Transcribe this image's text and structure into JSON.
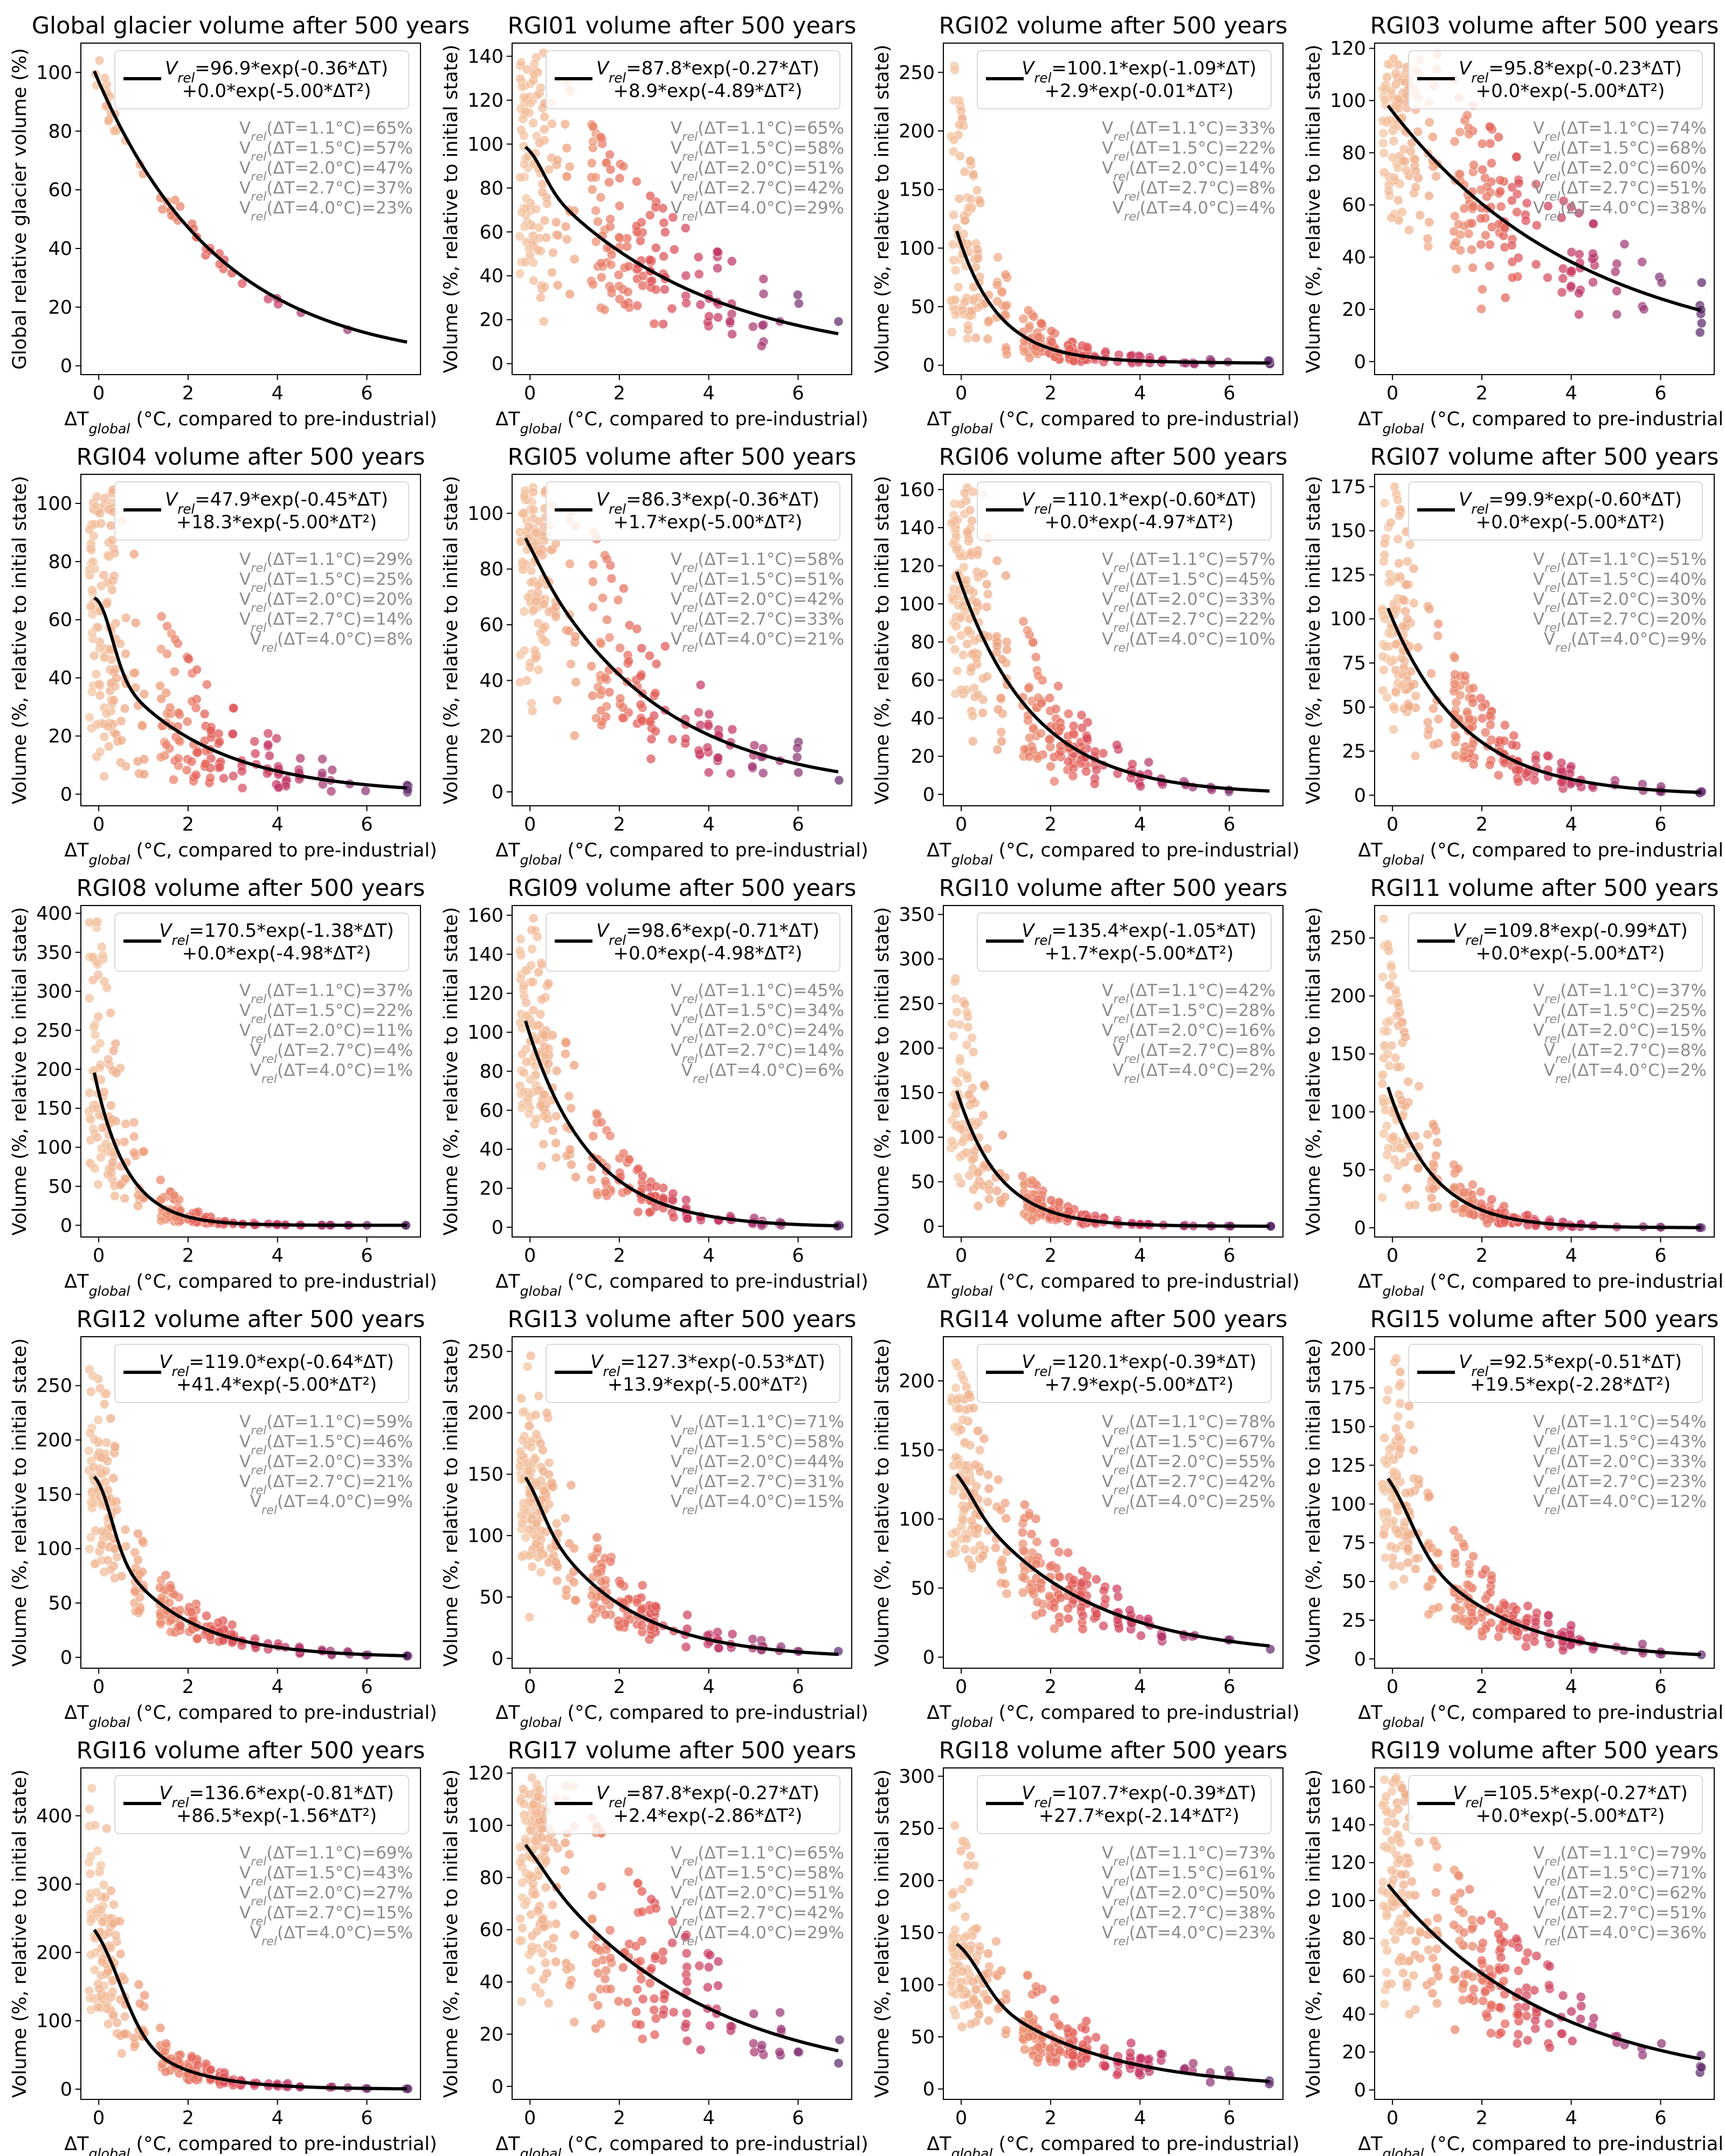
{
  "figure": {
    "xlabel": "ΔTglobal (°C, compared to pre-industrial)",
    "xticks": [
      0,
      2,
      4,
      6
    ],
    "xlim": [
      -0.4,
      7.2
    ],
    "colormap": [
      "#f3c7a4",
      "#ed9a76",
      "#e35b55",
      "#c73865",
      "#9b3a77",
      "#5c2a6b"
    ]
  },
  "chart_data": [
    {
      "type": "scatter",
      "title": "Global glacier volume after 500 years",
      "ylabel": "Global relative glacier volume (%)",
      "ylim": [
        -3,
        110
      ],
      "yticks": [
        0,
        20,
        40,
        60,
        80,
        100
      ],
      "fit": {
        "a": 96.9,
        "b": 0.36,
        "c": 0.0,
        "d": 5.0
      },
      "legend": [
        "Vrel=96.9*exp(-0.36*ΔT)",
        "+0.0*exp(-5.00*ΔT²)"
      ],
      "stats": [
        "Vrel(ΔT=1.1°C)=65%",
        "Vrel(ΔT=1.5°C)=57%",
        "Vrel(ΔT=2.0°C)=47%",
        "Vrel(ΔT=2.7°C)=37%",
        "Vrel(ΔT=4.0°C)=23%"
      ],
      "scatter": {
        "n": 48,
        "spread": 0.06,
        "low": 0.92,
        "high": 1.08
      }
    },
    {
      "type": "scatter",
      "title": "RGI01 volume after 500 years",
      "ylabel": "Volume (%, relative to initial state)",
      "ylim": [
        -5,
        146
      ],
      "yticks": [
        0,
        20,
        40,
        60,
        80,
        100,
        120,
        140
      ],
      "fit": {
        "a": 87.8,
        "b": 0.27,
        "c": 8.9,
        "d": 4.89
      },
      "legend": [
        "Vrel=87.8*exp(-0.27*ΔT)",
        "+8.9*exp(-4.89*ΔT²)"
      ],
      "stats": [
        "Vrel(ΔT=1.1°C)=65%",
        "Vrel(ΔT=1.5°C)=58%",
        "Vrel(ΔT=2.0°C)=51%",
        "Vrel(ΔT=2.7°C)=42%",
        "Vrel(ΔT=4.0°C)=29%"
      ],
      "scatter": {
        "n": 260,
        "spread": 0.45,
        "low": 0.1,
        "high": 1.8
      }
    },
    {
      "type": "scatter",
      "title": "RGI02 volume after 500 years",
      "ylabel": "Volume (%, relative to initial state)",
      "ylim": [
        -8,
        275
      ],
      "yticks": [
        0,
        50,
        100,
        150,
        200,
        250
      ],
      "fit": {
        "a": 100.1,
        "b": 1.09,
        "c": 2.9,
        "d": 0.01
      },
      "legend": [
        "Vrel=100.1*exp(-1.09*ΔT)",
        "+2.9*exp(-0.01*ΔT²)"
      ],
      "stats": [
        "Vrel(ΔT=1.1°C)=33%",
        "Vrel(ΔT=1.5°C)=22%",
        "Vrel(ΔT=2.0°C)=14%",
        "Vrel(ΔT=2.7°C)=8%",
        "Vrel(ΔT=4.0°C)=4%"
      ],
      "scatter": {
        "n": 240,
        "spread": 0.6,
        "low": 0.0,
        "high": 2.1
      }
    },
    {
      "type": "scatter",
      "title": "RGI03 volume after 500 years",
      "ylabel": "Volume (%, relative to initial state)",
      "ylim": [
        -5,
        122
      ],
      "yticks": [
        0,
        20,
        40,
        60,
        80,
        100,
        120
      ],
      "fit": {
        "a": 95.8,
        "b": 0.23,
        "c": 0.0,
        "d": 5.0
      },
      "legend": [
        "Vrel=95.8*exp(-0.23*ΔT)",
        "+0.0*exp(-5.00*ΔT²)"
      ],
      "stats": [
        "Vrel(ΔT=1.1°C)=74%",
        "Vrel(ΔT=1.5°C)=68%",
        "Vrel(ΔT=2.0°C)=60%",
        "Vrel(ΔT=2.7°C)=51%",
        "Vrel(ΔT=4.0°C)=38%"
      ],
      "scatter": {
        "n": 260,
        "spread": 0.35,
        "low": 0.05,
        "high": 1.55
      }
    },
    {
      "type": "scatter",
      "title": "RGI04 volume after 500 years",
      "ylabel": "Volume (%, relative to initial state)",
      "ylim": [
        -4,
        110
      ],
      "yticks": [
        0,
        20,
        40,
        60,
        80,
        100
      ],
      "fit": {
        "a": 47.9,
        "b": 0.45,
        "c": 18.3,
        "d": 5.0
      },
      "legend": [
        "Vrel=47.9*exp(-0.45*ΔT)",
        "+18.3*exp(-5.00*ΔT²)"
      ],
      "stats": [
        "Vrel(ΔT=1.1°C)=29%",
        "Vrel(ΔT=1.5°C)=25%",
        "Vrel(ΔT=2.0°C)=20%",
        "Vrel(ΔT=2.7°C)=14%",
        "Vrel(ΔT=4.0°C)=8%"
      ],
      "scatter": {
        "n": 260,
        "spread": 0.7,
        "low": 0.0,
        "high": 2.4
      }
    },
    {
      "type": "scatter",
      "title": "RGI05 volume after 500 years",
      "ylabel": "Volume (%, relative to initial state)",
      "ylim": [
        -5,
        114
      ],
      "yticks": [
        0,
        20,
        40,
        60,
        80,
        100
      ],
      "fit": {
        "a": 86.3,
        "b": 0.36,
        "c": 1.7,
        "d": 5.0
      },
      "legend": [
        "Vrel=86.3*exp(-0.36*ΔT)",
        "+1.7*exp(-5.00*ΔT²)"
      ],
      "stats": [
        "Vrel(ΔT=1.1°C)=58%",
        "Vrel(ΔT=1.5°C)=51%",
        "Vrel(ΔT=2.0°C)=42%",
        "Vrel(ΔT=2.7°C)=33%",
        "Vrel(ΔT=4.0°C)=21%"
      ],
      "scatter": {
        "n": 240,
        "spread": 0.45,
        "low": 0.05,
        "high": 1.8
      }
    },
    {
      "type": "scatter",
      "title": "RGI06 volume after 500 years",
      "ylabel": "Volume (%, relative to initial state)",
      "ylim": [
        -6,
        168
      ],
      "yticks": [
        0,
        20,
        40,
        60,
        80,
        100,
        120,
        140,
        160
      ],
      "fit": {
        "a": 110.1,
        "b": 0.6,
        "c": 0.0,
        "d": 4.97
      },
      "legend": [
        "Vrel=110.1*exp(-0.60*ΔT)",
        "+0.0*exp(-4.97*ΔT²)"
      ],
      "stats": [
        "Vrel(ΔT=1.1°C)=57%",
        "Vrel(ΔT=1.5°C)=45%",
        "Vrel(ΔT=2.0°C)=33%",
        "Vrel(ΔT=2.7°C)=22%",
        "Vrel(ΔT=4.0°C)=10%"
      ],
      "scatter": {
        "n": 260,
        "spread": 0.45,
        "low": 0.1,
        "high": 1.9
      }
    },
    {
      "type": "scatter",
      "title": "RGI07 volume after 500 years",
      "ylabel": "Volume (%, relative to initial state)",
      "ylim": [
        -6,
        182
      ],
      "yticks": [
        0,
        25,
        50,
        75,
        100,
        125,
        150,
        175
      ],
      "fit": {
        "a": 99.9,
        "b": 0.6,
        "c": 0.0,
        "d": 5.0
      },
      "legend": [
        "Vrel=99.9*exp(-0.60*ΔT)",
        "+0.0*exp(-5.00*ΔT²)"
      ],
      "stats": [
        "Vrel(ΔT=1.1°C)=51%",
        "Vrel(ΔT=1.5°C)=40%",
        "Vrel(ΔT=2.0°C)=30%",
        "Vrel(ΔT=2.7°C)=20%",
        "Vrel(ΔT=4.0°C)=9%"
      ],
      "scatter": {
        "n": 260,
        "spread": 0.4,
        "low": 0.1,
        "high": 1.8
      }
    },
    {
      "type": "scatter",
      "title": "RGI08 volume after 500 years",
      "ylabel": "Volume (%, relative to initial state)",
      "ylim": [
        -15,
        410
      ],
      "yticks": [
        0,
        50,
        100,
        150,
        200,
        250,
        300,
        350,
        400
      ],
      "fit": {
        "a": 170.5,
        "b": 1.38,
        "c": 0.0,
        "d": 4.98
      },
      "legend": [
        "Vrel=170.5*exp(-1.38*ΔT)",
        "+0.0*exp(-4.98*ΔT²)"
      ],
      "stats": [
        "Vrel(ΔT=1.1°C)=37%",
        "Vrel(ΔT=1.5°C)=22%",
        "Vrel(ΔT=2.0°C)=11%",
        "Vrel(ΔT=2.7°C)=4%",
        "Vrel(ΔT=4.0°C)=1%"
      ],
      "scatter": {
        "n": 220,
        "spread": 0.6,
        "low": 0.0,
        "high": 2.3
      }
    },
    {
      "type": "scatter",
      "title": "RGI09 volume after 500 years",
      "ylabel": "Volume (%, relative to initial state)",
      "ylim": [
        -5,
        165
      ],
      "yticks": [
        0,
        20,
        40,
        60,
        80,
        100,
        120,
        140,
        160
      ],
      "fit": {
        "a": 98.6,
        "b": 0.71,
        "c": 0.0,
        "d": 4.98
      },
      "legend": [
        "Vrel=98.6*exp(-0.71*ΔT)",
        "+0.0*exp(-4.98*ΔT²)"
      ],
      "stats": [
        "Vrel(ΔT=1.1°C)=45%",
        "Vrel(ΔT=1.5°C)=34%",
        "Vrel(ΔT=2.0°C)=24%",
        "Vrel(ΔT=2.7°C)=14%",
        "Vrel(ΔT=4.0°C)=6%"
      ],
      "scatter": {
        "n": 230,
        "spread": 0.4,
        "low": 0.05,
        "high": 1.7
      }
    },
    {
      "type": "scatter",
      "title": "RGI10 volume after 500 years",
      "ylabel": "Volume (%, relative to initial state)",
      "ylim": [
        -12,
        360
      ],
      "yticks": [
        0,
        50,
        100,
        150,
        200,
        250,
        300,
        350
      ],
      "fit": {
        "a": 135.4,
        "b": 1.05,
        "c": 1.7,
        "d": 5.0
      },
      "legend": [
        "Vrel=135.4*exp(-1.05*ΔT)",
        "+1.7*exp(-5.00*ΔT²)"
      ],
      "stats": [
        "Vrel(ΔT=1.1°C)=42%",
        "Vrel(ΔT=1.5°C)=28%",
        "Vrel(ΔT=2.0°C)=16%",
        "Vrel(ΔT=2.7°C)=8%",
        "Vrel(ΔT=4.0°C)=2%"
      ],
      "scatter": {
        "n": 230,
        "spread": 0.5,
        "low": 0.0,
        "high": 2.0
      }
    },
    {
      "type": "scatter",
      "title": "RGI11 volume after 500 years",
      "ylabel": "Volume (%, relative to initial state)",
      "ylim": [
        -8,
        278
      ],
      "yticks": [
        0,
        50,
        100,
        150,
        200,
        250
      ],
      "fit": {
        "a": 109.8,
        "b": 0.99,
        "c": 0.0,
        "d": 5.0
      },
      "legend": [
        "Vrel=109.8*exp(-0.99*ΔT)",
        "+0.0*exp(-5.00*ΔT²)"
      ],
      "stats": [
        "Vrel(ΔT=1.1°C)=37%",
        "Vrel(ΔT=1.5°C)=25%",
        "Vrel(ΔT=2.0°C)=15%",
        "Vrel(ΔT=2.7°C)=8%",
        "Vrel(ΔT=4.0°C)=2%"
      ],
      "scatter": {
        "n": 230,
        "spread": 0.55,
        "low": 0.0,
        "high": 2.0
      }
    },
    {
      "type": "scatter",
      "title": "RGI12 volume after 500 years",
      "ylabel": "Volume (%, relative to initial state)",
      "ylim": [
        -10,
        295
      ],
      "yticks": [
        0,
        50,
        100,
        150,
        200,
        250
      ],
      "fit": {
        "a": 119.0,
        "b": 0.64,
        "c": 41.4,
        "d": 5.0
      },
      "legend": [
        "Vrel=119.0*exp(-0.64*ΔT)",
        "+41.4*exp(-5.00*ΔT²)"
      ],
      "stats": [
        "Vrel(ΔT=1.1°C)=59%",
        "Vrel(ΔT=1.5°C)=46%",
        "Vrel(ΔT=2.0°C)=33%",
        "Vrel(ΔT=2.7°C)=21%",
        "Vrel(ΔT=4.0°C)=9%"
      ],
      "scatter": {
        "n": 260,
        "spread": 0.3,
        "low": 0.1,
        "high": 1.7
      }
    },
    {
      "type": "scatter",
      "title": "RGI13 volume after 500 years",
      "ylabel": "Volume (%, relative to initial state)",
      "ylim": [
        -8,
        262
      ],
      "yticks": [
        0,
        50,
        100,
        150,
        200,
        250
      ],
      "fit": {
        "a": 127.3,
        "b": 0.53,
        "c": 13.9,
        "d": 5.0
      },
      "legend": [
        "Vrel=127.3*exp(-0.53*ΔT)",
        "+13.9*exp(-5.00*ΔT²)"
      ],
      "stats": [
        "Vrel(ΔT=1.1°C)=71%",
        "Vrel(ΔT=1.5°C)=58%",
        "Vrel(ΔT=2.0°C)=44%",
        "Vrel(ΔT=2.7°C)=31%",
        "Vrel(ΔT=4.0°C)=15%"
      ],
      "scatter": {
        "n": 260,
        "spread": 0.3,
        "low": 0.1,
        "high": 1.8
      }
    },
    {
      "type": "scatter",
      "title": "RGI14 volume after 500 years",
      "ylabel": "Volume (%, relative to initial state)",
      "ylim": [
        -8,
        232
      ],
      "yticks": [
        0,
        50,
        100,
        150,
        200
      ],
      "fit": {
        "a": 120.1,
        "b": 0.39,
        "c": 7.9,
        "d": 5.0
      },
      "legend": [
        "Vrel=120.1*exp(-0.39*ΔT)",
        "+7.9*exp(-5.00*ΔT²)"
      ],
      "stats": [
        "Vrel(ΔT=1.1°C)=78%",
        "Vrel(ΔT=1.5°C)=67%",
        "Vrel(ΔT=2.0°C)=55%",
        "Vrel(ΔT=2.7°C)=42%",
        "Vrel(ΔT=4.0°C)=25%"
      ],
      "scatter": {
        "n": 260,
        "spread": 0.28,
        "low": 0.1,
        "high": 1.6
      }
    },
    {
      "type": "scatter",
      "title": "RGI15 volume after 500 years",
      "ylabel": "Volume (%, relative to initial state)",
      "ylim": [
        -6,
        208
      ],
      "yticks": [
        0,
        25,
        50,
        75,
        100,
        125,
        150,
        175,
        200
      ],
      "fit": {
        "a": 92.5,
        "b": 0.51,
        "c": 19.5,
        "d": 2.28
      },
      "legend": [
        "Vrel=92.5*exp(-0.51*ΔT)",
        "+19.5*exp(-2.28*ΔT²)"
      ],
      "stats": [
        "Vrel(ΔT=1.1°C)=54%",
        "Vrel(ΔT=1.5°C)=43%",
        "Vrel(ΔT=2.0°C)=33%",
        "Vrel(ΔT=2.7°C)=23%",
        "Vrel(ΔT=4.0°C)=12%"
      ],
      "scatter": {
        "n": 260,
        "spread": 0.35,
        "low": 0.1,
        "high": 1.8
      }
    },
    {
      "type": "scatter",
      "title": "RGI16 volume after 500 years",
      "ylabel": "Volume (%, relative to initial state)",
      "ylim": [
        -15,
        470
      ],
      "yticks": [
        0,
        100,
        200,
        300,
        400
      ],
      "fit": {
        "a": 136.6,
        "b": 0.81,
        "c": 86.5,
        "d": 1.56
      },
      "legend": [
        "Vrel=136.6*exp(-0.81*ΔT)",
        "+86.5*exp(-1.56*ΔT²)"
      ],
      "stats": [
        "Vrel(ΔT=1.1°C)=69%",
        "Vrel(ΔT=1.5°C)=43%",
        "Vrel(ΔT=2.0°C)=27%",
        "Vrel(ΔT=2.7°C)=15%",
        "Vrel(ΔT=4.0°C)=5%"
      ],
      "scatter": {
        "n": 240,
        "spread": 0.35,
        "low": 0.1,
        "high": 1.9
      }
    },
    {
      "type": "scatter",
      "title": "RGI17 volume after 500 years",
      "ylabel": "Volume (%, relative to initial state)",
      "ylim": [
        -5,
        122
      ],
      "yticks": [
        0,
        20,
        40,
        60,
        80,
        100,
        120
      ],
      "fit": {
        "a": 87.8,
        "b": 0.27,
        "c": 2.4,
        "d": 2.86
      },
      "legend": [
        "Vrel=87.8*exp(-0.27*ΔT)",
        "+2.4*exp(-2.86*ΔT²)"
      ],
      "stats": [
        "Vrel(ΔT=1.1°C)=65%",
        "Vrel(ΔT=1.5°C)=58%",
        "Vrel(ΔT=2.0°C)=51%",
        "Vrel(ΔT=2.7°C)=42%",
        "Vrel(ΔT=4.0°C)=29%"
      ],
      "scatter": {
        "n": 260,
        "spread": 0.45,
        "low": 0.05,
        "high": 1.7
      }
    },
    {
      "type": "scatter",
      "title": "RGI18 volume after 500 years",
      "ylabel": "Volume (%, relative to initial state)",
      "ylim": [
        -10,
        308
      ],
      "yticks": [
        0,
        50,
        100,
        150,
        200,
        250,
        300
      ],
      "fit": {
        "a": 107.7,
        "b": 0.39,
        "c": 27.7,
        "d": 2.14
      },
      "legend": [
        "Vrel=107.7*exp(-0.39*ΔT)",
        "+27.7*exp(-2.14*ΔT²)"
      ],
      "stats": [
        "Vrel(ΔT=1.1°C)=73%",
        "Vrel(ΔT=1.5°C)=61%",
        "Vrel(ΔT=2.0°C)=50%",
        "Vrel(ΔT=2.7°C)=38%",
        "Vrel(ΔT=4.0°C)=23%"
      ],
      "scatter": {
        "n": 260,
        "spread": 0.3,
        "low": 0.1,
        "high": 1.8
      }
    },
    {
      "type": "scatter",
      "title": "RGI19 volume after 500 years",
      "ylabel": "Volume (%, relative to initial state)",
      "ylim": [
        -5,
        170
      ],
      "yticks": [
        0,
        20,
        40,
        60,
        80,
        100,
        120,
        140,
        160
      ],
      "fit": {
        "a": 105.5,
        "b": 0.27,
        "c": 0.0,
        "d": 5.0
      },
      "legend": [
        "Vrel=105.5*exp(-0.27*ΔT)",
        "+0.0*exp(-5.00*ΔT²)"
      ],
      "stats": [
        "Vrel(ΔT=1.1°C)=79%",
        "Vrel(ΔT=1.5°C)=71%",
        "Vrel(ΔT=2.0°C)=62%",
        "Vrel(ΔT=2.7°C)=51%",
        "Vrel(ΔT=4.0°C)=36%"
      ],
      "scatter": {
        "n": 260,
        "spread": 0.35,
        "low": 0.05,
        "high": 1.6
      }
    }
  ]
}
